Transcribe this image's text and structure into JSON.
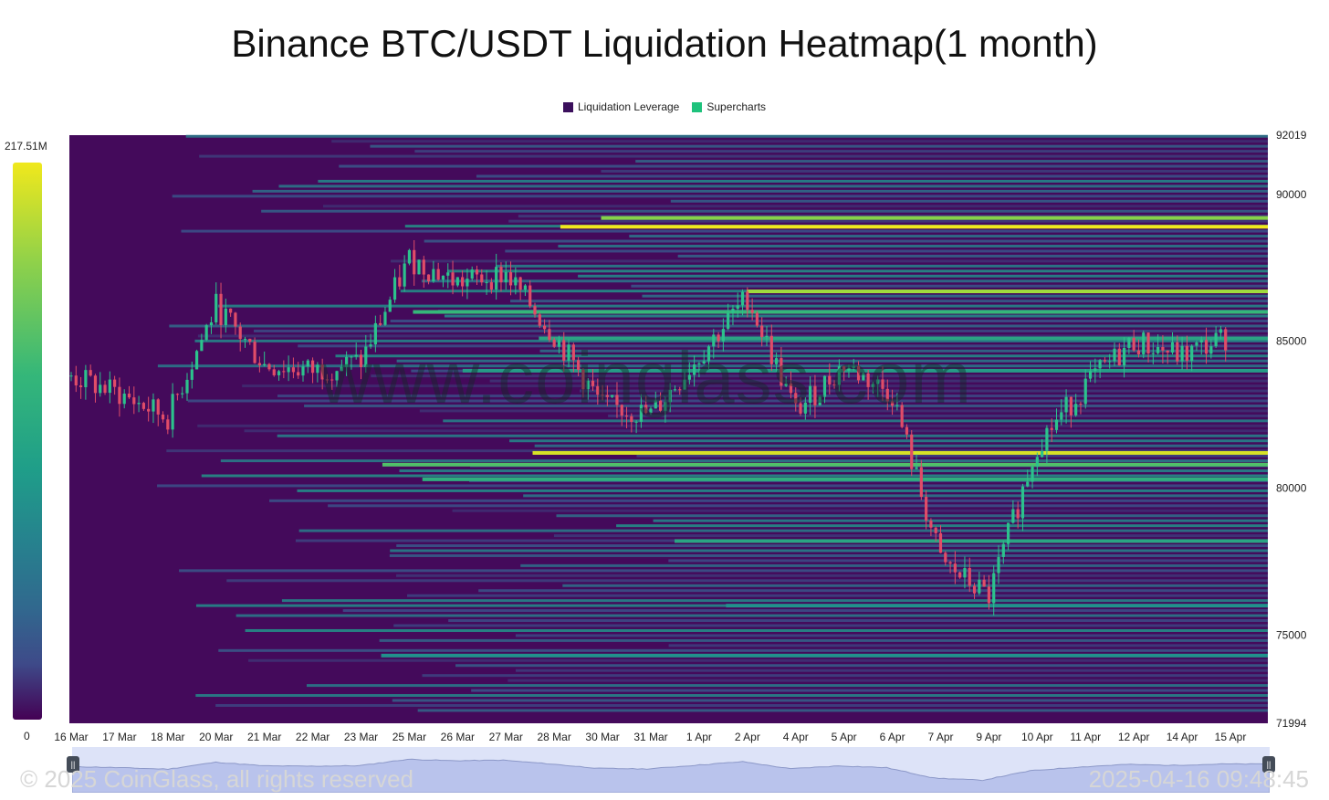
{
  "title": "Binance BTC/USDT Liquidation Heatmap(1 month)",
  "legend": [
    {
      "label": "Liquidation Leverage",
      "color": "#3b0f5c"
    },
    {
      "label": "Supercharts",
      "color": "#1ec27c"
    }
  ],
  "colorbar": {
    "max_label": "217.51M",
    "min_label": "0"
  },
  "watermark": "www.coinglass.com",
  "footer": {
    "copyright": "© 2025 CoinGlass, all rights reserved",
    "timestamp": "2025-04-16 09:48:45"
  },
  "colors": {
    "background": "#440a5b",
    "up": "#2cc28c",
    "down": "#e04c68",
    "high": "#f2e81c"
  },
  "chart_data": {
    "type": "heatmap",
    "title": "Binance BTC/USDT Liquidation Heatmap(1 month)",
    "x_ticks": [
      "16 Mar",
      "17 Mar",
      "18 Mar",
      "20 Mar",
      "21 Mar",
      "22 Mar",
      "23 Mar",
      "25 Mar",
      "26 Mar",
      "27 Mar",
      "28 Mar",
      "30 Mar",
      "31 Mar",
      "1 Apr",
      "2 Apr",
      "4 Apr",
      "5 Apr",
      "6 Apr",
      "7 Apr",
      "9 Apr",
      "10 Apr",
      "11 Apr",
      "12 Apr",
      "14 Apr",
      "15 Apr"
    ],
    "y_ticks": [
      92019,
      90000,
      85000,
      80000,
      75000,
      71994
    ],
    "ylim": [
      71994,
      92019
    ],
    "colorscale": {
      "min": 0,
      "max": "217.51M"
    },
    "price_series": {
      "name": "Supercharts",
      "x": [
        "16 Mar",
        "17 Mar",
        "18 Mar",
        "20 Mar",
        "21 Mar",
        "22 Mar",
        "23 Mar",
        "25 Mar",
        "26 Mar",
        "27 Mar",
        "28 Mar",
        "30 Mar",
        "31 Mar",
        "1 Apr",
        "2 Apr",
        "4 Apr",
        "5 Apr",
        "6 Apr",
        "7 Apr",
        "9 Apr",
        "10 Apr",
        "11 Apr",
        "12 Apr",
        "14 Apr",
        "15 Apr"
      ],
      "y": [
        83800,
        83200,
        82400,
        86200,
        84200,
        84000,
        84300,
        87800,
        87000,
        87300,
        85200,
        82800,
        82500,
        84500,
        86500,
        82600,
        84200,
        83200,
        77500,
        76300,
        81500,
        83500,
        85000,
        84500,
        85200
      ]
    },
    "liquidation_bands": [
      {
        "price": 88900,
        "intensity": 1.0
      },
      {
        "price": 89200,
        "intensity": 0.8
      },
      {
        "price": 86700,
        "intensity": 0.85
      },
      {
        "price": 86000,
        "intensity": 0.65
      },
      {
        "price": 85100,
        "intensity": 0.55
      },
      {
        "price": 84000,
        "intensity": 0.5
      },
      {
        "price": 81200,
        "intensity": 0.95
      },
      {
        "price": 80800,
        "intensity": 0.7
      },
      {
        "price": 80300,
        "intensity": 0.6
      },
      {
        "price": 78200,
        "intensity": 0.55
      },
      {
        "price": 76000,
        "intensity": 0.45
      },
      {
        "price": 74300,
        "intensity": 0.45
      }
    ]
  }
}
